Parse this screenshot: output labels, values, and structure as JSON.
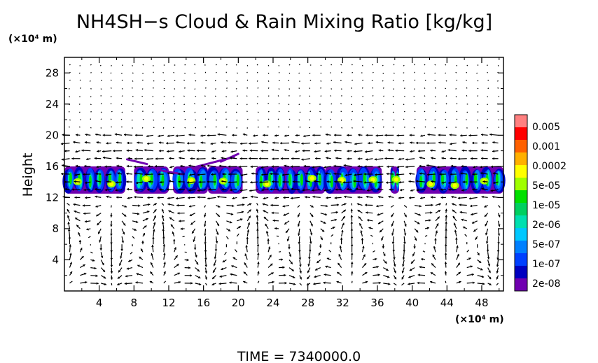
{
  "chart_data": {
    "type": "heatmap",
    "title": "NH4SH−s Cloud & Rain Mixing Ratio [kg/kg]",
    "ylabel": "Height",
    "y_unit": "(×10⁴ m)",
    "x_unit": "(×10⁴ m)",
    "xlim": [
      0,
      50.5
    ],
    "ylim": [
      0,
      30
    ],
    "x_ticks": [
      "4",
      "8",
      "12",
      "16",
      "20",
      "24",
      "28",
      "32",
      "36",
      "40",
      "44",
      "48"
    ],
    "y_ticks": [
      "4",
      "8",
      "12",
      "16",
      "20",
      "24",
      "28"
    ],
    "x_tick_values": [
      4,
      8,
      12,
      16,
      20,
      24,
      28,
      32,
      36,
      40,
      44,
      48
    ],
    "y_tick_values": [
      4,
      8,
      12,
      16,
      20,
      24,
      28
    ],
    "footer": "TIME  =  7340000.0",
    "legend": {
      "placement": "right",
      "labels": [
        "0.005",
        "0.001",
        "0.0002",
        "5e-05",
        "1e-05",
        "2e-06",
        "5e-07",
        "1e-07",
        "2e-08"
      ],
      "colors": [
        "#ff8080",
        "#ff0000",
        "#ff6000",
        "#ffb000",
        "#ffff00",
        "#a0ff00",
        "#00e000",
        "#00d060",
        "#00e0b0",
        "#00c8ff",
        "#0080ff",
        "#0040ff",
        "#0000c0",
        "#7000b0"
      ]
    },
    "cloud_layer": {
      "base_height": 12.5,
      "top_height": 17.5,
      "segments_x": [
        [
          0,
          7
        ],
        [
          8,
          12
        ],
        [
          12.5,
          16.5
        ],
        [
          16.5,
          20.5
        ],
        [
          22,
          30
        ],
        [
          30,
          36.5
        ],
        [
          37.5,
          38.5
        ],
        [
          40.5,
          50.5
        ]
      ]
    },
    "vectors": {
      "description": "wind vector field over the whole domain"
    }
  }
}
